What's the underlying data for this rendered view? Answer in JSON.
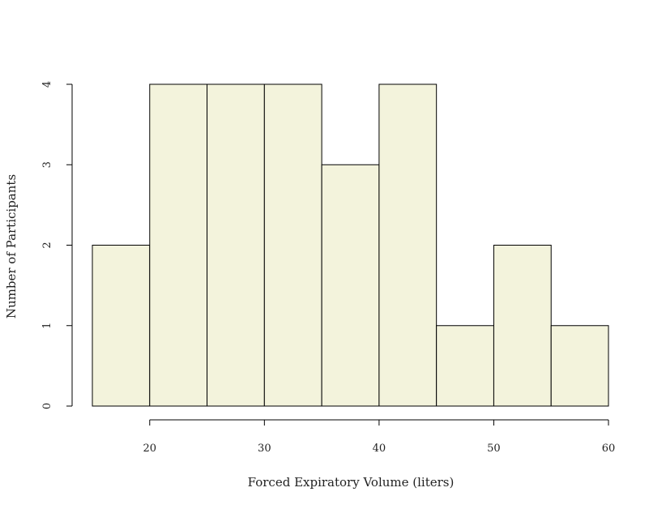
{
  "chart_data": {
    "type": "bar",
    "subtype": "histogram",
    "bins": [
      {
        "x0": 15,
        "x1": 20,
        "count": 2
      },
      {
        "x0": 20,
        "x1": 25,
        "count": 4
      },
      {
        "x0": 25,
        "x1": 30,
        "count": 4
      },
      {
        "x0": 30,
        "x1": 35,
        "count": 4
      },
      {
        "x0": 35,
        "x1": 40,
        "count": 3
      },
      {
        "x0": 40,
        "x1": 45,
        "count": 4
      },
      {
        "x0": 45,
        "x1": 50,
        "count": 1
      },
      {
        "x0": 50,
        "x1": 55,
        "count": 2
      },
      {
        "x0": 55,
        "x1": 60,
        "count": 1
      }
    ],
    "xlabel": "Forced Expiratory Volume (liters)",
    "ylabel": "Number of Participants",
    "xlim": [
      15,
      60
    ],
    "ylim": [
      0,
      4
    ],
    "xticks": [
      20,
      30,
      40,
      50,
      60
    ],
    "yticks": [
      0,
      1,
      2,
      3,
      4
    ],
    "bar_color": "#f3f3dc",
    "edge_color": "#000000",
    "grid": false,
    "legend": "none"
  }
}
